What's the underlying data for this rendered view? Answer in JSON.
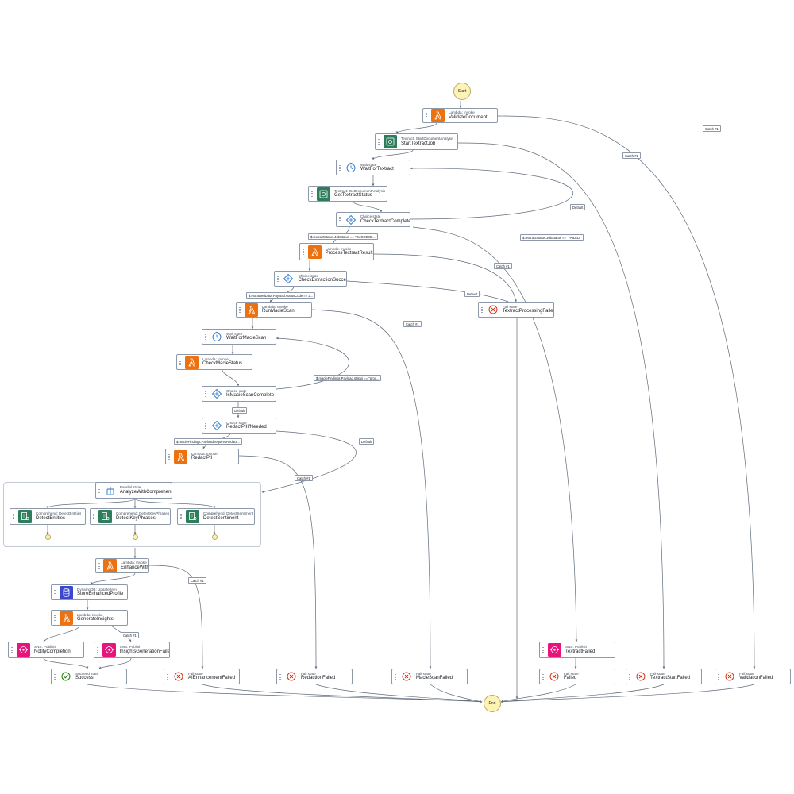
{
  "terminals": {
    "start": "Start",
    "end": "End"
  },
  "colors": {
    "lambda": "#ec7211",
    "textract": "#2e7d5b",
    "comprehend": "#2e7d5b",
    "dynamodb": "#3b48cc",
    "sns": "#e7157b",
    "fail": "#d13212",
    "success": "#1d8102",
    "state": "#2a74c9"
  },
  "nodes": {
    "validate_document": {
      "type": "Lambda: Invoke",
      "name": "ValidateDocument",
      "icon": "lambda-icon"
    },
    "start_textract_job": {
      "type": "Textract: StartDocumentAnalysis",
      "name": "StartTextractJob",
      "icon": "textract-icon"
    },
    "wait_for_textract": {
      "type": "Wait state",
      "name": "WaitForTextract",
      "icon": "clock-icon"
    },
    "get_textract_status": {
      "type": "Textract: GetDocumentAnalysis",
      "name": "GetTextractStatus",
      "icon": "textract-icon"
    },
    "check_textract_complete": {
      "type": "Choice state",
      "name": "CheckTextractComplete",
      "icon": "choice-icon"
    },
    "process_textract_results": {
      "type": "Lambda: Invoke",
      "name": "ProcessTextractResults",
      "icon": "lambda-icon"
    },
    "check_extraction_success": {
      "type": "Choice state",
      "name": "CheckExtractionSuccess",
      "icon": "choice-icon"
    },
    "textract_processing_failed": {
      "type": "Fail state",
      "name": "TextractProcessingFailed",
      "icon": "fail-icon"
    },
    "run_macie_scan": {
      "type": "Lambda: Invoke",
      "name": "RunMacieScan",
      "icon": "lambda-icon"
    },
    "wait_for_macie_scan": {
      "type": "Wait state",
      "name": "WaitForMacieScan",
      "icon": "clock-icon"
    },
    "check_macie_status": {
      "type": "Lambda: Invoke",
      "name": "CheckMacieStatus",
      "icon": "lambda-icon"
    },
    "is_macie_scan_complete": {
      "type": "Choice state",
      "name": "IsMacieScanComplete",
      "icon": "choice-icon"
    },
    "redact_pii_if_needed": {
      "type": "Choice state",
      "name": "RedactPIIIfNeeded",
      "icon": "choice-icon"
    },
    "redact_pii": {
      "type": "Lambda: Invoke",
      "name": "RedactPII",
      "icon": "lambda-icon"
    },
    "analyze_with_comprehend": {
      "type": "Parallel state",
      "name": "AnalyzeWithComprehend",
      "icon": "parallel-icon"
    },
    "detect_entities": {
      "type": "Comprehend: DetectEntities",
      "name": "DetectEntities",
      "icon": "comprehend-icon"
    },
    "detect_key_phrases": {
      "type": "Comprehend: DetectKeyPhrases",
      "name": "DetectKeyPhrases",
      "icon": "comprehend-icon"
    },
    "detect_sentiment": {
      "type": "Comprehend: DetectSentiment",
      "name": "DetectSentiment",
      "icon": "comprehend-icon"
    },
    "enhance_with_ai": {
      "type": "Lambda: Invoke",
      "name": "EnhanceWithAI",
      "icon": "lambda-icon"
    },
    "store_enhanced_profile": {
      "type": "DynamoDB: UpdateItem",
      "name": "StoreEnhancedProfile",
      "icon": "dynamodb-icon"
    },
    "generate_insights": {
      "type": "Lambda: Invoke",
      "name": "GenerateInsights",
      "icon": "lambda-icon"
    },
    "notify_completion": {
      "type": "SNS: Publish",
      "name": "NotifyCompletion",
      "icon": "sns-icon"
    },
    "insights_generation_failed": {
      "type": "SNS: Publish",
      "name": "InsightsGenerationFailed",
      "icon": "sns-icon"
    },
    "textract_failed_sns": {
      "type": "SNS: Publish",
      "name": "TextractFailed",
      "icon": "sns-icon"
    },
    "success": {
      "type": "Succeed state",
      "name": "Success",
      "icon": "success-icon"
    },
    "ai_enhancement_failed": {
      "type": "Fail state",
      "name": "AIEnhancementFailed",
      "icon": "fail-icon"
    },
    "redaction_failed": {
      "type": "Fail state",
      "name": "RedactionFailed",
      "icon": "fail-icon"
    },
    "macie_scan_failed": {
      "type": "Fail state",
      "name": "MacieScanFailed",
      "icon": "fail-icon"
    },
    "failed": {
      "type": "Fail state",
      "name": "Failed",
      "icon": "fail-icon"
    },
    "textract_start_failed": {
      "type": "Fail state",
      "name": "TextractStartFailed",
      "icon": "fail-icon"
    },
    "validation_failed": {
      "type": "Fail state",
      "name": "ValidationFailed",
      "icon": "fail-icon"
    }
  },
  "edge_labels": {
    "catch_validate": "Catch #1",
    "catch_start_textract": "Catch #1",
    "default_check_textract": "Default",
    "cond_succeeded": "$.textractStatus.JobStatus == \"SUCCEED...",
    "cond_failed": "$.textractStatus.JobStatus == \"FAILED\"",
    "catch_process": "Catch #1",
    "default_extraction": "Default",
    "cond_extraction": "$.extractedData.Payload.statusCode == 2...",
    "catch_macie": "Catch #1",
    "cond_macie_status": "$.macieFindings.Payload.status == \"proc...",
    "default_is_macie": "Default",
    "cond_redact": "$.macieFindings.Payload.requiresRedact...",
    "default_redact": "Default",
    "catch_redact": "Catch #1",
    "catch_enhance": "Catch #1",
    "catch_insights": "Catch #1"
  }
}
